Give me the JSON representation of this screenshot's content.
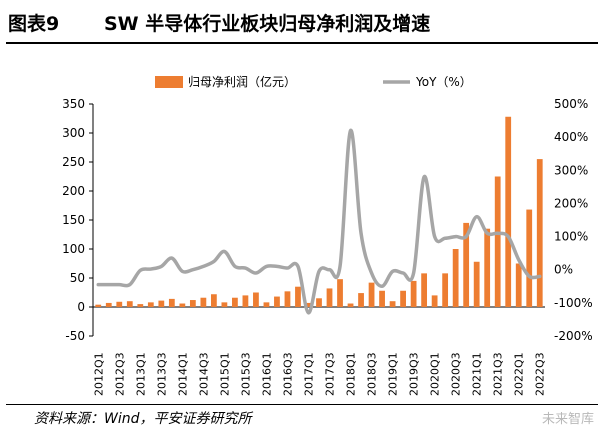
{
  "title": {
    "figure_no": "图表9",
    "text": "SW 半导体行业板块归母净利润及增速"
  },
  "source": "资料来源：Wind，平安证券研究所",
  "watermark": "未来智库",
  "colors": {
    "bar": "#ED7D31",
    "line": "#A6A6A6",
    "axis": "#000000"
  },
  "chart_data": {
    "type": "bar",
    "categories": [
      "2012Q1",
      "2012Q2",
      "2012Q3",
      "2012Q4",
      "2013Q1",
      "2013Q2",
      "2013Q3",
      "2013Q4",
      "2014Q1",
      "2014Q2",
      "2014Q3",
      "2014Q4",
      "2015Q1",
      "2015Q2",
      "2015Q3",
      "2015Q4",
      "2016Q1",
      "2016Q2",
      "2016Q3",
      "2016Q4",
      "2017Q1",
      "2017Q2",
      "2017Q3",
      "2017Q4",
      "2018Q1",
      "2018Q2",
      "2018Q3",
      "2018Q4",
      "2019Q1",
      "2019Q2",
      "2019Q3",
      "2019Q4",
      "2020Q1",
      "2020Q2",
      "2020Q3",
      "2020Q4",
      "2021Q1",
      "2021Q2",
      "2021Q3",
      "2021Q4",
      "2022Q1",
      "2022Q2",
      "2022Q3"
    ],
    "tick_labels": [
      "2012Q1",
      "2012Q3",
      "2013Q1",
      "2013Q3",
      "2014Q1",
      "2014Q3",
      "2015Q1",
      "2015Q3",
      "2016Q1",
      "2016Q3",
      "2017Q1",
      "2017Q3",
      "2018Q1",
      "2018Q3",
      "2019Q1",
      "2019Q3",
      "2020Q1",
      "2020Q3",
      "2021Q1",
      "2021Q3",
      "2022Q1",
      "2022Q3"
    ],
    "series": [
      {
        "name": "归母净利润（亿元）",
        "kind": "bar",
        "axis": "left",
        "values": [
          4,
          7,
          9,
          10,
          5,
          8,
          11,
          14,
          6,
          12,
          16,
          22,
          8,
          16,
          20,
          25,
          8,
          18,
          27,
          35,
          7,
          15,
          32,
          48,
          6,
          24,
          42,
          28,
          10,
          28,
          45,
          58,
          20,
          58,
          100,
          145,
          78,
          135,
          225,
          328,
          75,
          168,
          255
        ]
      },
      {
        "name": "YoY（%）",
        "kind": "line",
        "axis": "right",
        "values": [
          -45,
          -45,
          -45,
          -45,
          -2,
          2,
          10,
          35,
          -5,
          0,
          10,
          25,
          55,
          10,
          5,
          -10,
          10,
          10,
          5,
          10,
          -130,
          -5,
          0,
          10,
          420,
          110,
          -10,
          -50,
          -5,
          -10,
          -10,
          280,
          100,
          95,
          100,
          100,
          160,
          110,
          110,
          100,
          30,
          -20,
          -20
        ]
      }
    ],
    "ylim_left": [
      -50,
      350
    ],
    "yticks_left": [
      -50,
      0,
      50,
      100,
      150,
      200,
      250,
      300,
      350
    ],
    "ylim_right": [
      -200,
      500
    ],
    "yticks_right": [
      "-200%",
      "-100%",
      "0%",
      "100%",
      "200%",
      "300%",
      "400%",
      "500%"
    ],
    "grid": false,
    "legend": "top"
  }
}
